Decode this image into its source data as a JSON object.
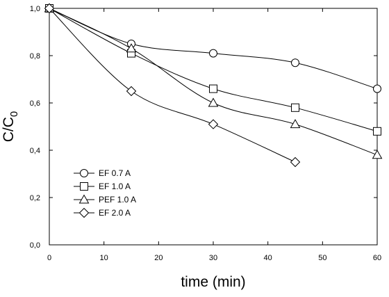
{
  "chart_data": {
    "type": "line",
    "title": "",
    "xlabel": "time (min)",
    "ylabel": {
      "main": "C/C",
      "sub": "0"
    },
    "xlim": [
      0,
      60
    ],
    "ylim": [
      0.0,
      1.0
    ],
    "x_ticks": [
      0,
      10,
      20,
      30,
      40,
      50,
      60
    ],
    "x_tick_labels": [
      "0",
      "10",
      "20",
      "30",
      "40",
      "50",
      "60"
    ],
    "y_ticks": [
      0.0,
      0.2,
      0.4,
      0.6,
      0.8,
      1.0
    ],
    "y_tick_labels": [
      "0,0",
      "0,2",
      "0,4",
      "0,6",
      "0,8",
      "1,0"
    ],
    "grid": false,
    "legend_position": "lower-left",
    "series": [
      {
        "name": "EF 0.7 A",
        "marker": "circle",
        "x": [
          0,
          15,
          30,
          45,
          60
        ],
        "y": [
          1.0,
          0.85,
          0.81,
          0.77,
          0.66
        ]
      },
      {
        "name": "EF 1.0 A",
        "marker": "square",
        "x": [
          0,
          15,
          30,
          45,
          60
        ],
        "y": [
          1.0,
          0.81,
          0.66,
          0.58,
          0.48
        ]
      },
      {
        "name": "PEF 1.0 A",
        "marker": "triangle",
        "x": [
          0,
          15,
          30,
          45,
          60
        ],
        "y": [
          1.0,
          0.83,
          0.6,
          0.51,
          0.38
        ]
      },
      {
        "name": "EF 2.0 A",
        "marker": "diamond",
        "x": [
          0,
          15,
          30,
          45
        ],
        "y": [
          1.0,
          0.65,
          0.51,
          0.35
        ]
      }
    ]
  }
}
